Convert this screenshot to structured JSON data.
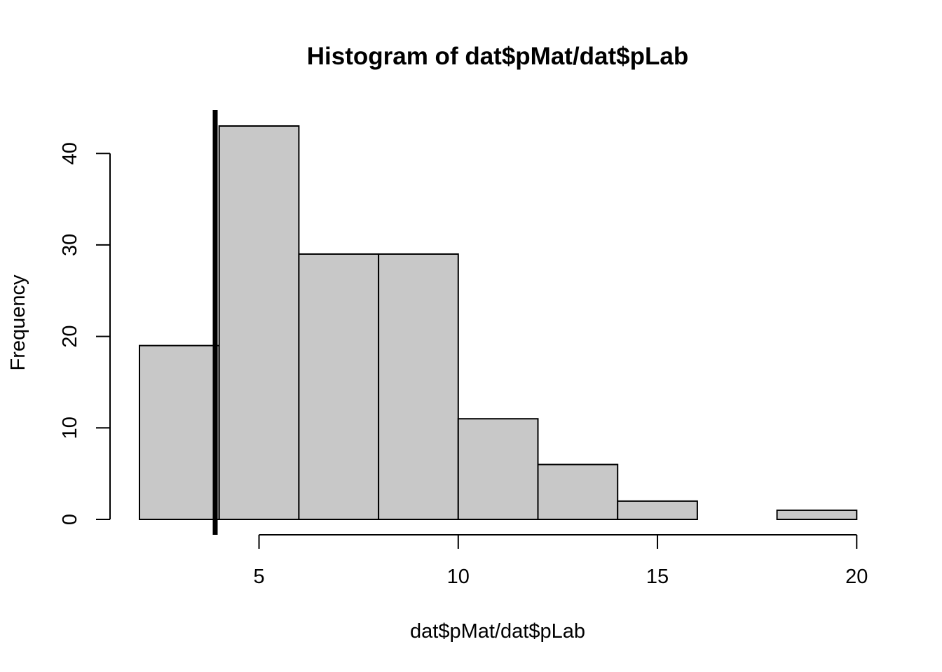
{
  "chart_data": {
    "type": "bar",
    "title": "Histogram of dat$pMat/dat$pLab",
    "xlabel": "dat$pMat/dat$pLab",
    "ylabel": "Frequency",
    "bins": [
      {
        "start": 2,
        "end": 4,
        "count": 19
      },
      {
        "start": 4,
        "end": 6,
        "count": 43
      },
      {
        "start": 6,
        "end": 8,
        "count": 29
      },
      {
        "start": 8,
        "end": 10,
        "count": 29
      },
      {
        "start": 10,
        "end": 12,
        "count": 11
      },
      {
        "start": 12,
        "end": 14,
        "count": 6
      },
      {
        "start": 14,
        "end": 16,
        "count": 2
      },
      {
        "start": 16,
        "end": 18,
        "count": 0
      },
      {
        "start": 18,
        "end": 20,
        "count": 1
      }
    ],
    "xticks": [
      5,
      10,
      15,
      20
    ],
    "yticks": [
      0,
      10,
      20,
      30,
      40
    ],
    "xlim": [
      2,
      20
    ],
    "ylim": [
      0,
      43
    ],
    "reference_line_x": 3.9,
    "bar_color": "#c8c8c8",
    "edge_color": "#000000",
    "grid": false,
    "legend": "none"
  }
}
